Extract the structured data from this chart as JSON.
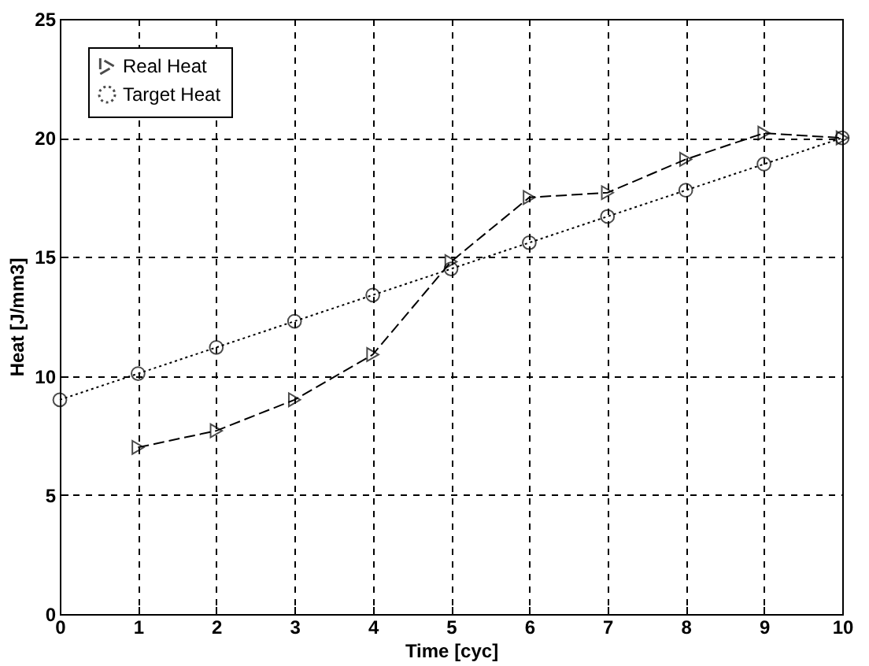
{
  "chart_data": {
    "type": "line",
    "xlabel": "Time [cyc]",
    "ylabel": "Heat [J/mm3]",
    "x": [
      0,
      1,
      2,
      3,
      4,
      5,
      6,
      7,
      8,
      9,
      10
    ],
    "series": [
      {
        "name": "Real Heat",
        "color": "#000000",
        "marker": "triangle",
        "line_style": "dashed",
        "x": [
          1,
          2,
          3,
          4,
          5,
          6,
          7,
          8,
          9,
          10
        ],
        "values": [
          7.0,
          7.7,
          9.0,
          10.9,
          14.8,
          17.5,
          17.7,
          19.1,
          20.2,
          20.0
        ]
      },
      {
        "name": "Target Heat",
        "color": "#000000",
        "marker": "circle",
        "line_style": "dotted",
        "values": [
          9.0,
          10.1,
          11.2,
          12.3,
          13.4,
          14.5,
          15.6,
          16.7,
          17.8,
          18.9,
          20.0
        ]
      }
    ],
    "xlim": [
      0,
      10
    ],
    "xticks": [
      0,
      1,
      2,
      3,
      4,
      5,
      6,
      7,
      8,
      9,
      10
    ],
    "ylim": [
      0,
      25
    ],
    "yticks": [
      0,
      5,
      10,
      15,
      20,
      25
    ],
    "grid": true,
    "legend": "top left"
  }
}
